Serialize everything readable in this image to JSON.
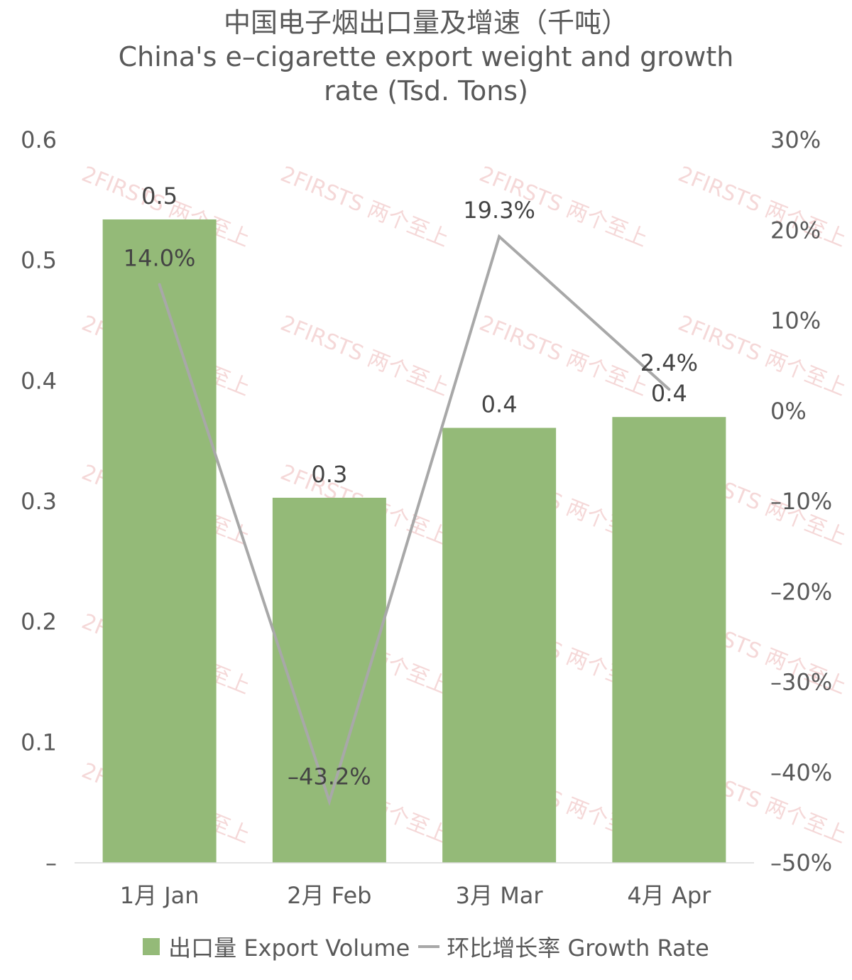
{
  "chart_data": {
    "type": "bar+line",
    "title_cn": "中国电子烟出口量及增速（千吨）",
    "title_en": "China's e–cigarette export weight and growth rate (Tsd. Tons)",
    "title_en_line1": "China's e–cigarette export weight and growth",
    "title_en_line2": "rate (Tsd. Tons)",
    "categories": [
      "1月 Jan",
      "2月 Feb",
      "3月 Mar",
      "4月 Apr"
    ],
    "series": [
      {
        "name": "出口量 Export Volume",
        "type": "bar",
        "axis": "left",
        "values": [
          0.534,
          0.303,
          0.361,
          0.37
        ],
        "data_labels": [
          "0.5",
          "0.3",
          "0.4",
          "0.4"
        ],
        "color": "#94BA78"
      },
      {
        "name": "环比增长率 Growth Rate",
        "type": "line",
        "axis": "right",
        "values": [
          14.0,
          -43.2,
          19.3,
          2.4
        ],
        "data_labels": [
          "14.0%",
          "–43.2%",
          "19.3%",
          "2.4%"
        ],
        "color": "#A8A8A8"
      }
    ],
    "y_left": {
      "min": 0,
      "max": 0.6,
      "ticks": [
        0,
        0.1,
        0.2,
        0.3,
        0.4,
        0.5,
        0.6
      ],
      "tick_labels": [
        "–",
        "0.1",
        "0.2",
        "0.3",
        "0.4",
        "0.5",
        "0.6"
      ]
    },
    "y_right": {
      "min": -50,
      "max": 30,
      "ticks": [
        30,
        20,
        10,
        0,
        -10,
        -20,
        -30,
        -40,
        -50
      ],
      "tick_labels": [
        "30%",
        "20%",
        "10%",
        "0%",
        "–10%",
        "–20%",
        "–30%",
        "–40%",
        "–50%"
      ]
    },
    "grid": false,
    "legend": "bottom",
    "watermark": "2FIRSTS 两个至上"
  },
  "colors": {
    "bar": "#94BA78",
    "line": "#A8A8A8",
    "text": "#444444",
    "axis_text": "#595959",
    "baseline": "#D9D9D9",
    "watermark": "#E8A8A8"
  }
}
